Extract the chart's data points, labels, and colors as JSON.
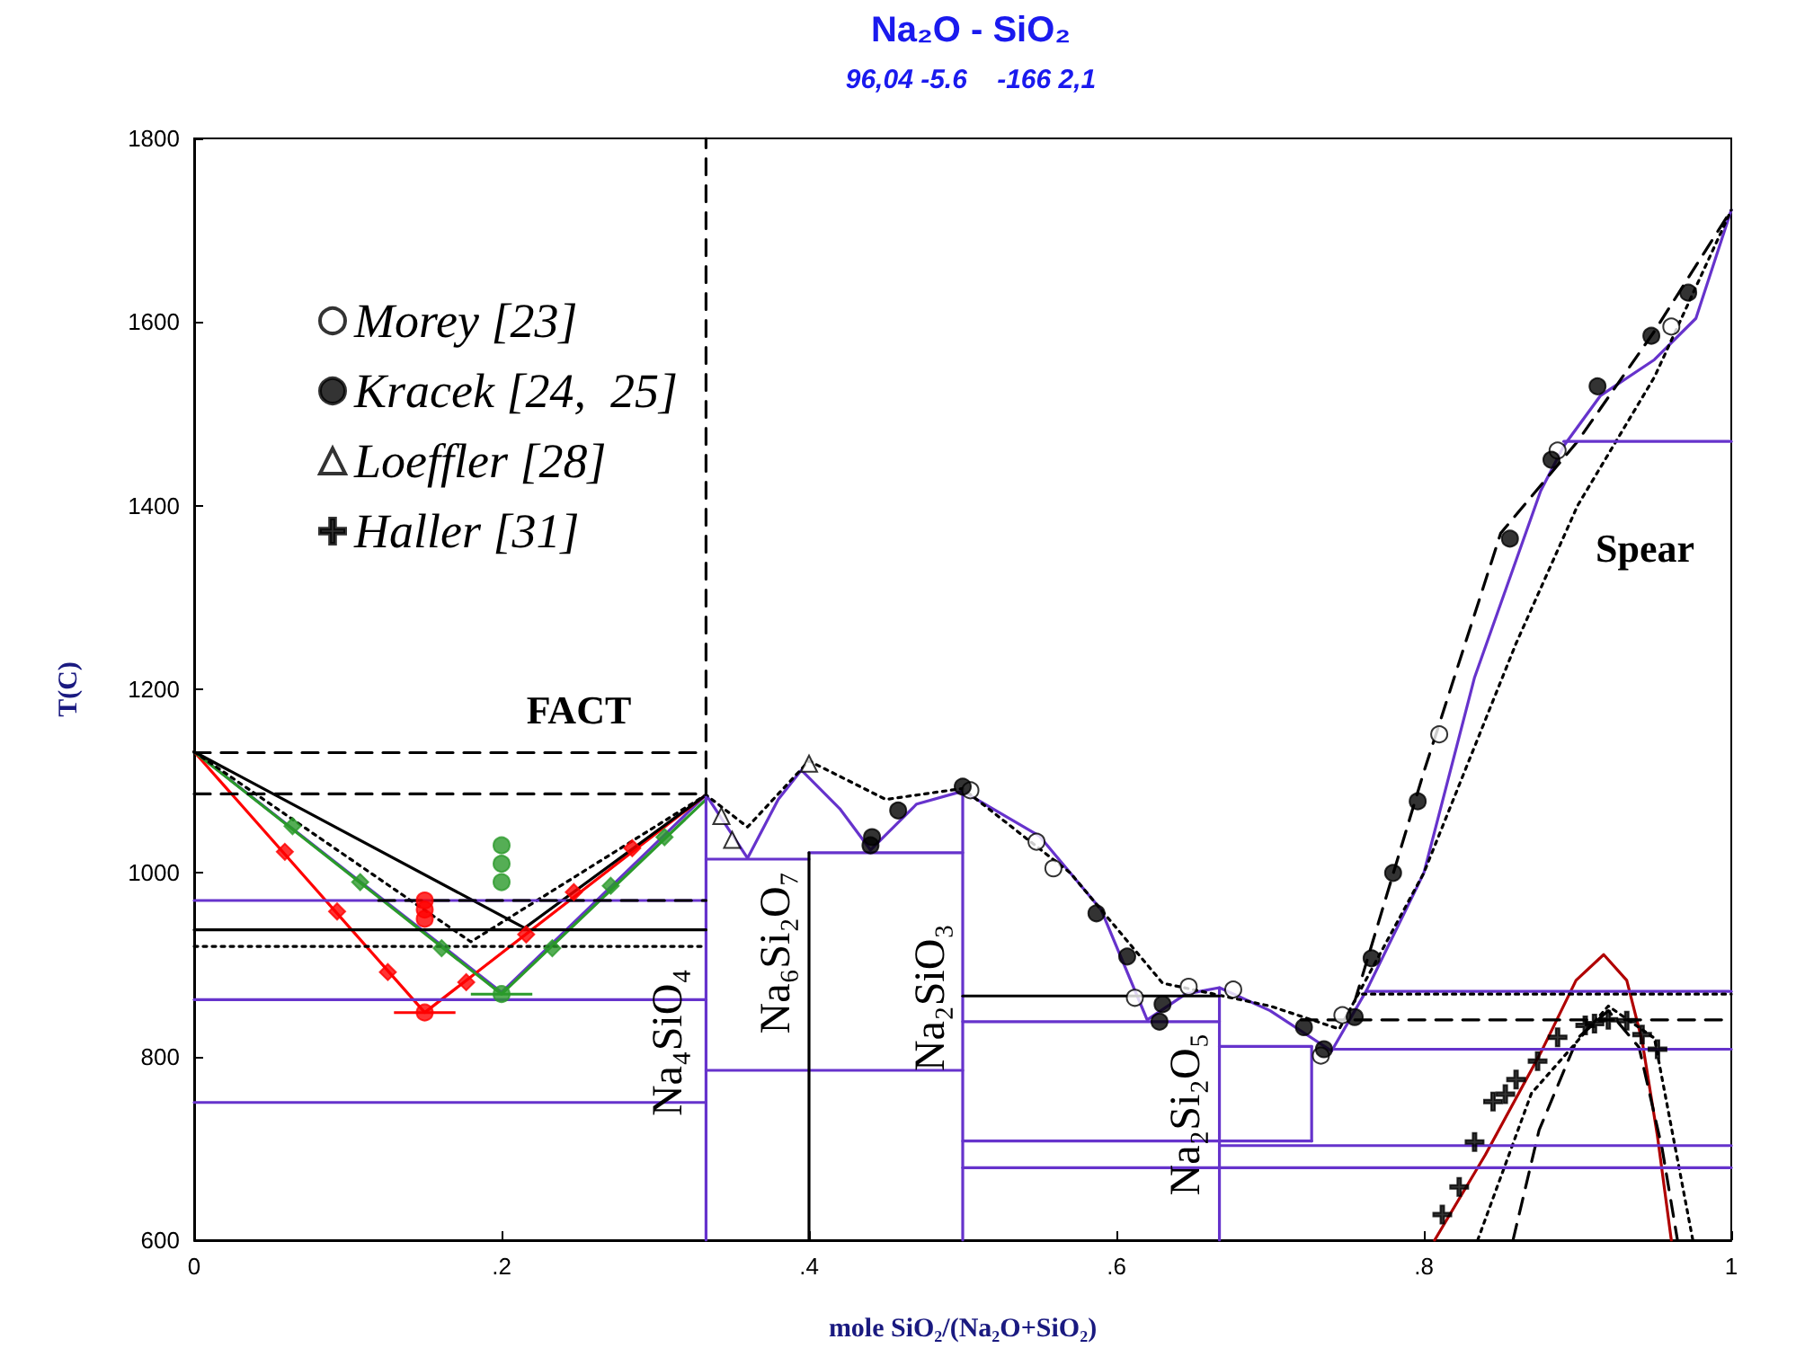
{
  "chart_data": {
    "type": "line",
    "title": "Na₂O - SiO₂",
    "subtitle": "96,04 -5.6    -166 2,1",
    "xlabel": "mole SiO₂/(Na₂O+SiO₂)",
    "ylabel": "T(C)",
    "xlim": [
      0,
      1
    ],
    "ylim": [
      600,
      1800
    ],
    "xticks": [
      {
        "value": 0,
        "label": "0"
      },
      {
        "value": 0.2,
        "label": ".2"
      },
      {
        "value": 0.4,
        "label": ".4"
      },
      {
        "value": 0.6,
        "label": ".6"
      },
      {
        "value": 0.8,
        "label": ".8"
      },
      {
        "value": 1,
        "label": "1"
      }
    ],
    "yticks": [
      600,
      800,
      1000,
      1200,
      1400,
      1600,
      1800
    ],
    "legend": "top left",
    "marker": "none",
    "series": [
      {
        "color": "#6633cc",
        "x": [
          0,
          0.2,
          0.333,
          0.36,
          0.38,
          0.395,
          0.42,
          0.44,
          0.47,
          0.5,
          0.55,
          0.59,
          0.62,
          0.645,
          0.667,
          0.7,
          0.74,
          0.763,
          0.8,
          0.833,
          0.876,
          0.891,
          0.915,
          0.95,
          0.977,
          1
        ],
        "values": [
          1132,
          870,
          1085,
          1016,
          1080,
          1112,
          1070,
          1025,
          1075,
          1089,
          1040,
          960,
          840,
          868,
          875,
          850,
          806,
          873,
          1000,
          1213,
          1416,
          1465,
          1520,
          1559,
          1604,
          1722
        ]
      },
      {
        "color": "#ff0000",
        "x": [
          0,
          0.15,
          0.333
        ],
        "values": [
          1132,
          848,
          1085
        ]
      },
      {
        "color": "#2a9a2a",
        "x": [
          0,
          0.2,
          0.333
        ],
        "values": [
          1132,
          868,
          1080
        ]
      },
      {
        "color": "#000000",
        "x": [
          0,
          0.215,
          0.333
        ],
        "values": [
          1132,
          940,
          1085
        ]
      },
      {
        "color": "#000000",
        "line_style": "dotted",
        "x": [
          0,
          0.18,
          0.333,
          0.36,
          0.4,
          0.45,
          0.5,
          0.57,
          0.63,
          0.7,
          0.745,
          0.8,
          0.86,
          0.9,
          0.95,
          1
        ],
        "values": [
          1132,
          925,
          1085,
          1050,
          1122,
          1080,
          1092,
          1000,
          880,
          855,
          830,
          1000,
          1250,
          1400,
          1540,
          1722
        ]
      },
      {
        "color": "#000000",
        "line_style": "dashed",
        "x": [
          0.755,
          0.8,
          0.85,
          0.9,
          0.95,
          1
        ],
        "values": [
          860,
          1110,
          1370,
          1470,
          1590,
          1722
        ]
      },
      {
        "color": "#b00000",
        "x": [
          0.807,
          0.84,
          0.876,
          0.899,
          0.917,
          0.932,
          0.942,
          0.952,
          0.961
        ],
        "values": [
          600,
          693,
          804,
          883,
          911,
          883,
          817,
          713,
          600
        ]
      },
      {
        "color": "#000000",
        "line_style": "dashed",
        "x": [
          0.858,
          0.875,
          0.9,
          0.92,
          0.94,
          0.955,
          0.965
        ],
        "values": [
          600,
          720,
          820,
          850,
          810,
          700,
          600
        ]
      },
      {
        "color": "#000000",
        "line_style": "dotted",
        "x": [
          0.835,
          0.87,
          0.92,
          0.95,
          0.975
        ],
        "values": [
          600,
          760,
          855,
          820,
          600
        ]
      },
      {
        "color": "#6633cc",
        "x": [
          0,
          0.333
        ],
        "values": [
          970,
          970
        ]
      },
      {
        "color": "#6633cc",
        "x": [
          0,
          0.333
        ],
        "values": [
          862,
          862
        ]
      },
      {
        "color": "#6633cc",
        "x": [
          0,
          0.333
        ],
        "values": [
          750,
          750
        ]
      },
      {
        "color": "#6633cc",
        "x": [
          0.333,
          0.4
        ],
        "values": [
          1015,
          1015
        ]
      },
      {
        "color": "#6633cc",
        "x": [
          0.333,
          0.5
        ],
        "values": [
          785,
          785
        ]
      },
      {
        "color": "#6633cc",
        "x": [
          0.4,
          0.5
        ],
        "values": [
          1022,
          1022
        ]
      },
      {
        "color": "#6633cc",
        "x": [
          0.5,
          0.667
        ],
        "values": [
          838,
          838
        ]
      },
      {
        "color": "#6633cc",
        "x": [
          0.667,
          0.727
        ],
        "values": [
          811,
          811
        ]
      },
      {
        "color": "#6633cc",
        "x": [
          0.5,
          0.727
        ],
        "values": [
          708,
          708
        ]
      },
      {
        "color": "#6633cc",
        "x": [
          0.667,
          1
        ],
        "values": [
          703,
          703
        ]
      },
      {
        "color": "#6633cc",
        "x": [
          0.5,
          1
        ],
        "values": [
          679,
          679
        ]
      },
      {
        "color": "#6633cc",
        "x": [
          0.74,
          1
        ],
        "values": [
          808,
          808
        ]
      },
      {
        "color": "#6633cc",
        "x": [
          0.763,
          1
        ],
        "values": [
          871,
          871
        ]
      },
      {
        "color": "#6633cc",
        "x": [
          0.891,
          1
        ],
        "values": [
          1470,
          1470
        ]
      },
      {
        "color": "#6633cc",
        "x": [
          0.333,
          0.333
        ],
        "values": [
          600,
          1085
        ]
      },
      {
        "color": "#6633cc",
        "x": [
          0.5,
          0.5
        ],
        "values": [
          600,
          1089
        ]
      },
      {
        "color": "#6633cc",
        "x": [
          0.667,
          0.667
        ],
        "values": [
          600,
          875
        ]
      },
      {
        "color": "#6633cc",
        "x": [
          0.727,
          0.727
        ],
        "values": [
          708,
          811
        ]
      },
      {
        "color": "#000000",
        "x": [
          0.4,
          0.4
        ],
        "values": [
          600,
          1022
        ]
      },
      {
        "color": "#000000",
        "line_style": "dashed",
        "x": [
          0.333,
          0.333
        ],
        "values": [
          1085,
          1800
        ]
      },
      {
        "color": "#000000",
        "line_style": "dashed",
        "x": [
          0,
          0.333
        ],
        "values": [
          1131,
          1131
        ]
      },
      {
        "color": "#000000",
        "line_style": "dashed",
        "x": [
          0,
          0.333
        ],
        "values": [
          1086,
          1086
        ]
      },
      {
        "color": "#000000",
        "line_style": "dashed",
        "x": [
          0.12,
          0.333
        ],
        "values": [
          970,
          970
        ]
      },
      {
        "color": "#000000",
        "x": [
          0,
          0.333
        ],
        "values": [
          938,
          938
        ]
      },
      {
        "color": "#000000",
        "line_style": "dotted",
        "x": [
          0,
          0.333
        ],
        "values": [
          920,
          920
        ]
      },
      {
        "color": "#000000",
        "x": [
          0.5,
          0.667
        ],
        "values": [
          866,
          866
        ]
      },
      {
        "color": "#000000",
        "line_style": "dashed",
        "x": [
          0.72,
          1
        ],
        "values": [
          840,
          840
        ]
      },
      {
        "color": "#000000",
        "line_style": "dotted",
        "x": [
          0.76,
          1
        ],
        "values": [
          868,
          868
        ]
      },
      {
        "type": "scatter",
        "marker": "diamond",
        "color": "#ff0000",
        "x": [
          0.059,
          0.093,
          0.126,
          0.177,
          0.216,
          0.247,
          0.285
        ],
        "values": [
          1023,
          958,
          892,
          881,
          933,
          979,
          1027
        ]
      },
      {
        "type": "scatter",
        "marker": "circle",
        "color": "#ff0000",
        "x": [
          0.15,
          0.15,
          0.15
        ],
        "values": [
          970,
          960,
          950
        ]
      },
      {
        "type": "scatter",
        "marker": "circle",
        "color": "#ff0000",
        "x": [
          0.15
        ],
        "values": [
          848
        ],
        "xerrors": [
          0.02
        ]
      },
      {
        "type": "scatter",
        "marker": "diamond",
        "color": "#2a9a2a",
        "x": [
          0.064,
          0.108,
          0.161,
          0.233,
          0.271,
          0.306
        ],
        "values": [
          1051,
          990,
          918,
          918,
          986,
          1039
        ]
      },
      {
        "type": "scatter",
        "marker": "circle",
        "color": "#2a9a2a",
        "x": [
          0.2,
          0.2,
          0.2
        ],
        "values": [
          1030,
          1010,
          990
        ]
      },
      {
        "type": "scatter",
        "marker": "circle",
        "color": "#2a9a2a",
        "x": [
          0.2
        ],
        "values": [
          868
        ],
        "xerrors": [
          0.02
        ]
      },
      {
        "type": "scatter",
        "name": "Morey [23]",
        "marker": "circle",
        "color": "#ffffff",
        "x": [
          0.505,
          0.548,
          0.559,
          0.612,
          0.647,
          0.676,
          0.733,
          0.747,
          0.81,
          0.887,
          0.961
        ],
        "values": [
          1090,
          1034,
          1005,
          864,
          876,
          873,
          801,
          845,
          1151,
          1460,
          1595
        ]
      },
      {
        "type": "scatter",
        "name": "Kracek [24,  25]",
        "marker": "circle",
        "color": "#000000",
        "x": [
          0.44,
          0.441,
          0.458,
          0.5,
          0.587,
          0.607,
          0.628,
          0.63,
          0.722,
          0.735,
          0.755,
          0.766,
          0.78,
          0.796,
          0.856,
          0.883,
          0.913,
          0.948,
          0.972
        ],
        "values": [
          1030,
          1039,
          1068,
          1094,
          956,
          909,
          838,
          857,
          832,
          808,
          843,
          907,
          1000,
          1078,
          1364,
          1450,
          1530,
          1585,
          1632
        ]
      },
      {
        "type": "scatter",
        "name": "Loeffler [28]",
        "marker": "triangle",
        "color": "#ffffff",
        "x": [
          0.343,
          0.35,
          0.4
        ],
        "values": [
          1062,
          1036,
          1119
        ]
      },
      {
        "type": "scatter",
        "name": "Haller [31]",
        "marker": "cross",
        "color": "#000000",
        "x": [
          0.812,
          0.823,
          0.833,
          0.845,
          0.853,
          0.86,
          0.874,
          0.887,
          0.905,
          0.911,
          0.92,
          0.932,
          0.942,
          0.952
        ],
        "values": [
          628,
          658,
          707,
          751,
          759,
          775,
          795,
          821,
          834,
          836,
          840,
          839,
          824,
          808
        ]
      }
    ],
    "annotations": [
      "FACT",
      "Spear",
      "Na₄SiO₄",
      "Na₆Si₂O₇",
      "Na₂SiO₃",
      "Na₂Si₂O₅"
    ]
  }
}
